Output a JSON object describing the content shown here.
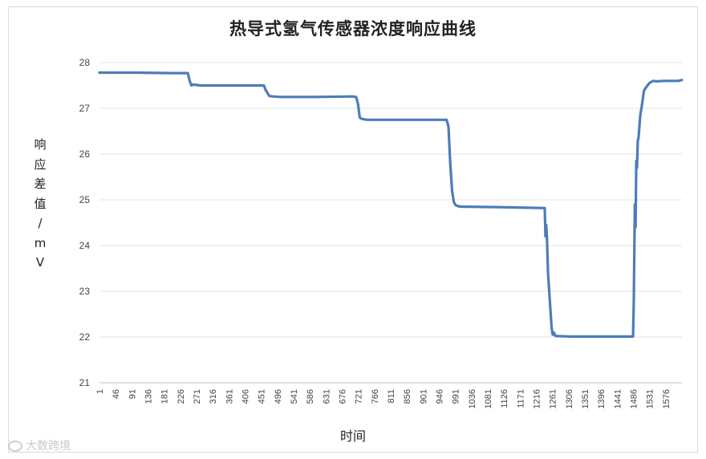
{
  "chart_data": {
    "type": "line",
    "title": "热导式氢气传感器浓度响应曲线",
    "xlabel": "时间",
    "ylabel_chars": [
      "响",
      "应",
      "差",
      "值",
      "/",
      "m",
      "V"
    ],
    "ylim": [
      21,
      28
    ],
    "yticks": [
      21,
      22,
      23,
      24,
      25,
      26,
      27,
      28
    ],
    "xlim": [
      1,
      1610
    ],
    "xticks": [
      "1",
      "46",
      "91",
      "136",
      "181",
      "226",
      "271",
      "316",
      "361",
      "406",
      "451",
      "496",
      "541",
      "586",
      "631",
      "676",
      "721",
      "766",
      "811",
      "856",
      "901",
      "946",
      "991",
      "1036",
      "1081",
      "1126",
      "1171",
      "1216",
      "1261",
      "1306",
      "1351",
      "1396",
      "1441",
      "1486",
      "1531",
      "1576"
    ],
    "grid": "horizontal",
    "legend": "none",
    "series": [
      {
        "color": "#4e7cb9",
        "x": [
          1,
          100,
          200,
          245,
          250,
          255,
          260,
          280,
          300,
          400,
          455,
          460,
          470,
          480,
          500,
          600,
          700,
          710,
          715,
          720,
          725,
          740,
          800,
          900,
          960,
          965,
          970,
          975,
          980,
          985,
          992,
          1000,
          1100,
          1231,
          1233,
          1235,
          1237,
          1240,
          1245,
          1250,
          1253,
          1256,
          1260,
          1265,
          1270,
          1300,
          1400,
          1475,
          1477,
          1480,
          1482,
          1484,
          1486,
          1488,
          1490,
          1493,
          1495,
          1500,
          1505,
          1510,
          1515,
          1520,
          1530,
          1540,
          1560,
          1600,
          1610
        ],
        "y": [
          27.78,
          27.78,
          27.77,
          27.77,
          27.6,
          27.5,
          27.52,
          27.5,
          27.5,
          27.5,
          27.5,
          27.4,
          27.27,
          27.26,
          27.25,
          27.25,
          27.26,
          27.25,
          27.1,
          26.8,
          26.77,
          26.75,
          26.75,
          26.75,
          26.75,
          26.6,
          25.8,
          25.2,
          24.95,
          24.88,
          24.86,
          24.85,
          24.84,
          24.82,
          24.2,
          24.45,
          24.2,
          23.4,
          22.8,
          22.2,
          22.05,
          22.1,
          22.03,
          22.02,
          22.02,
          22.01,
          22.01,
          22.01,
          22.8,
          24.9,
          24.4,
          25.85,
          25.7,
          26.3,
          26.35,
          26.65,
          26.85,
          27.1,
          27.38,
          27.45,
          27.5,
          27.55,
          27.6,
          27.59,
          27.6,
          27.6,
          27.62
        ]
      }
    ]
  },
  "watermark": {
    "text": "大数跨境"
  }
}
